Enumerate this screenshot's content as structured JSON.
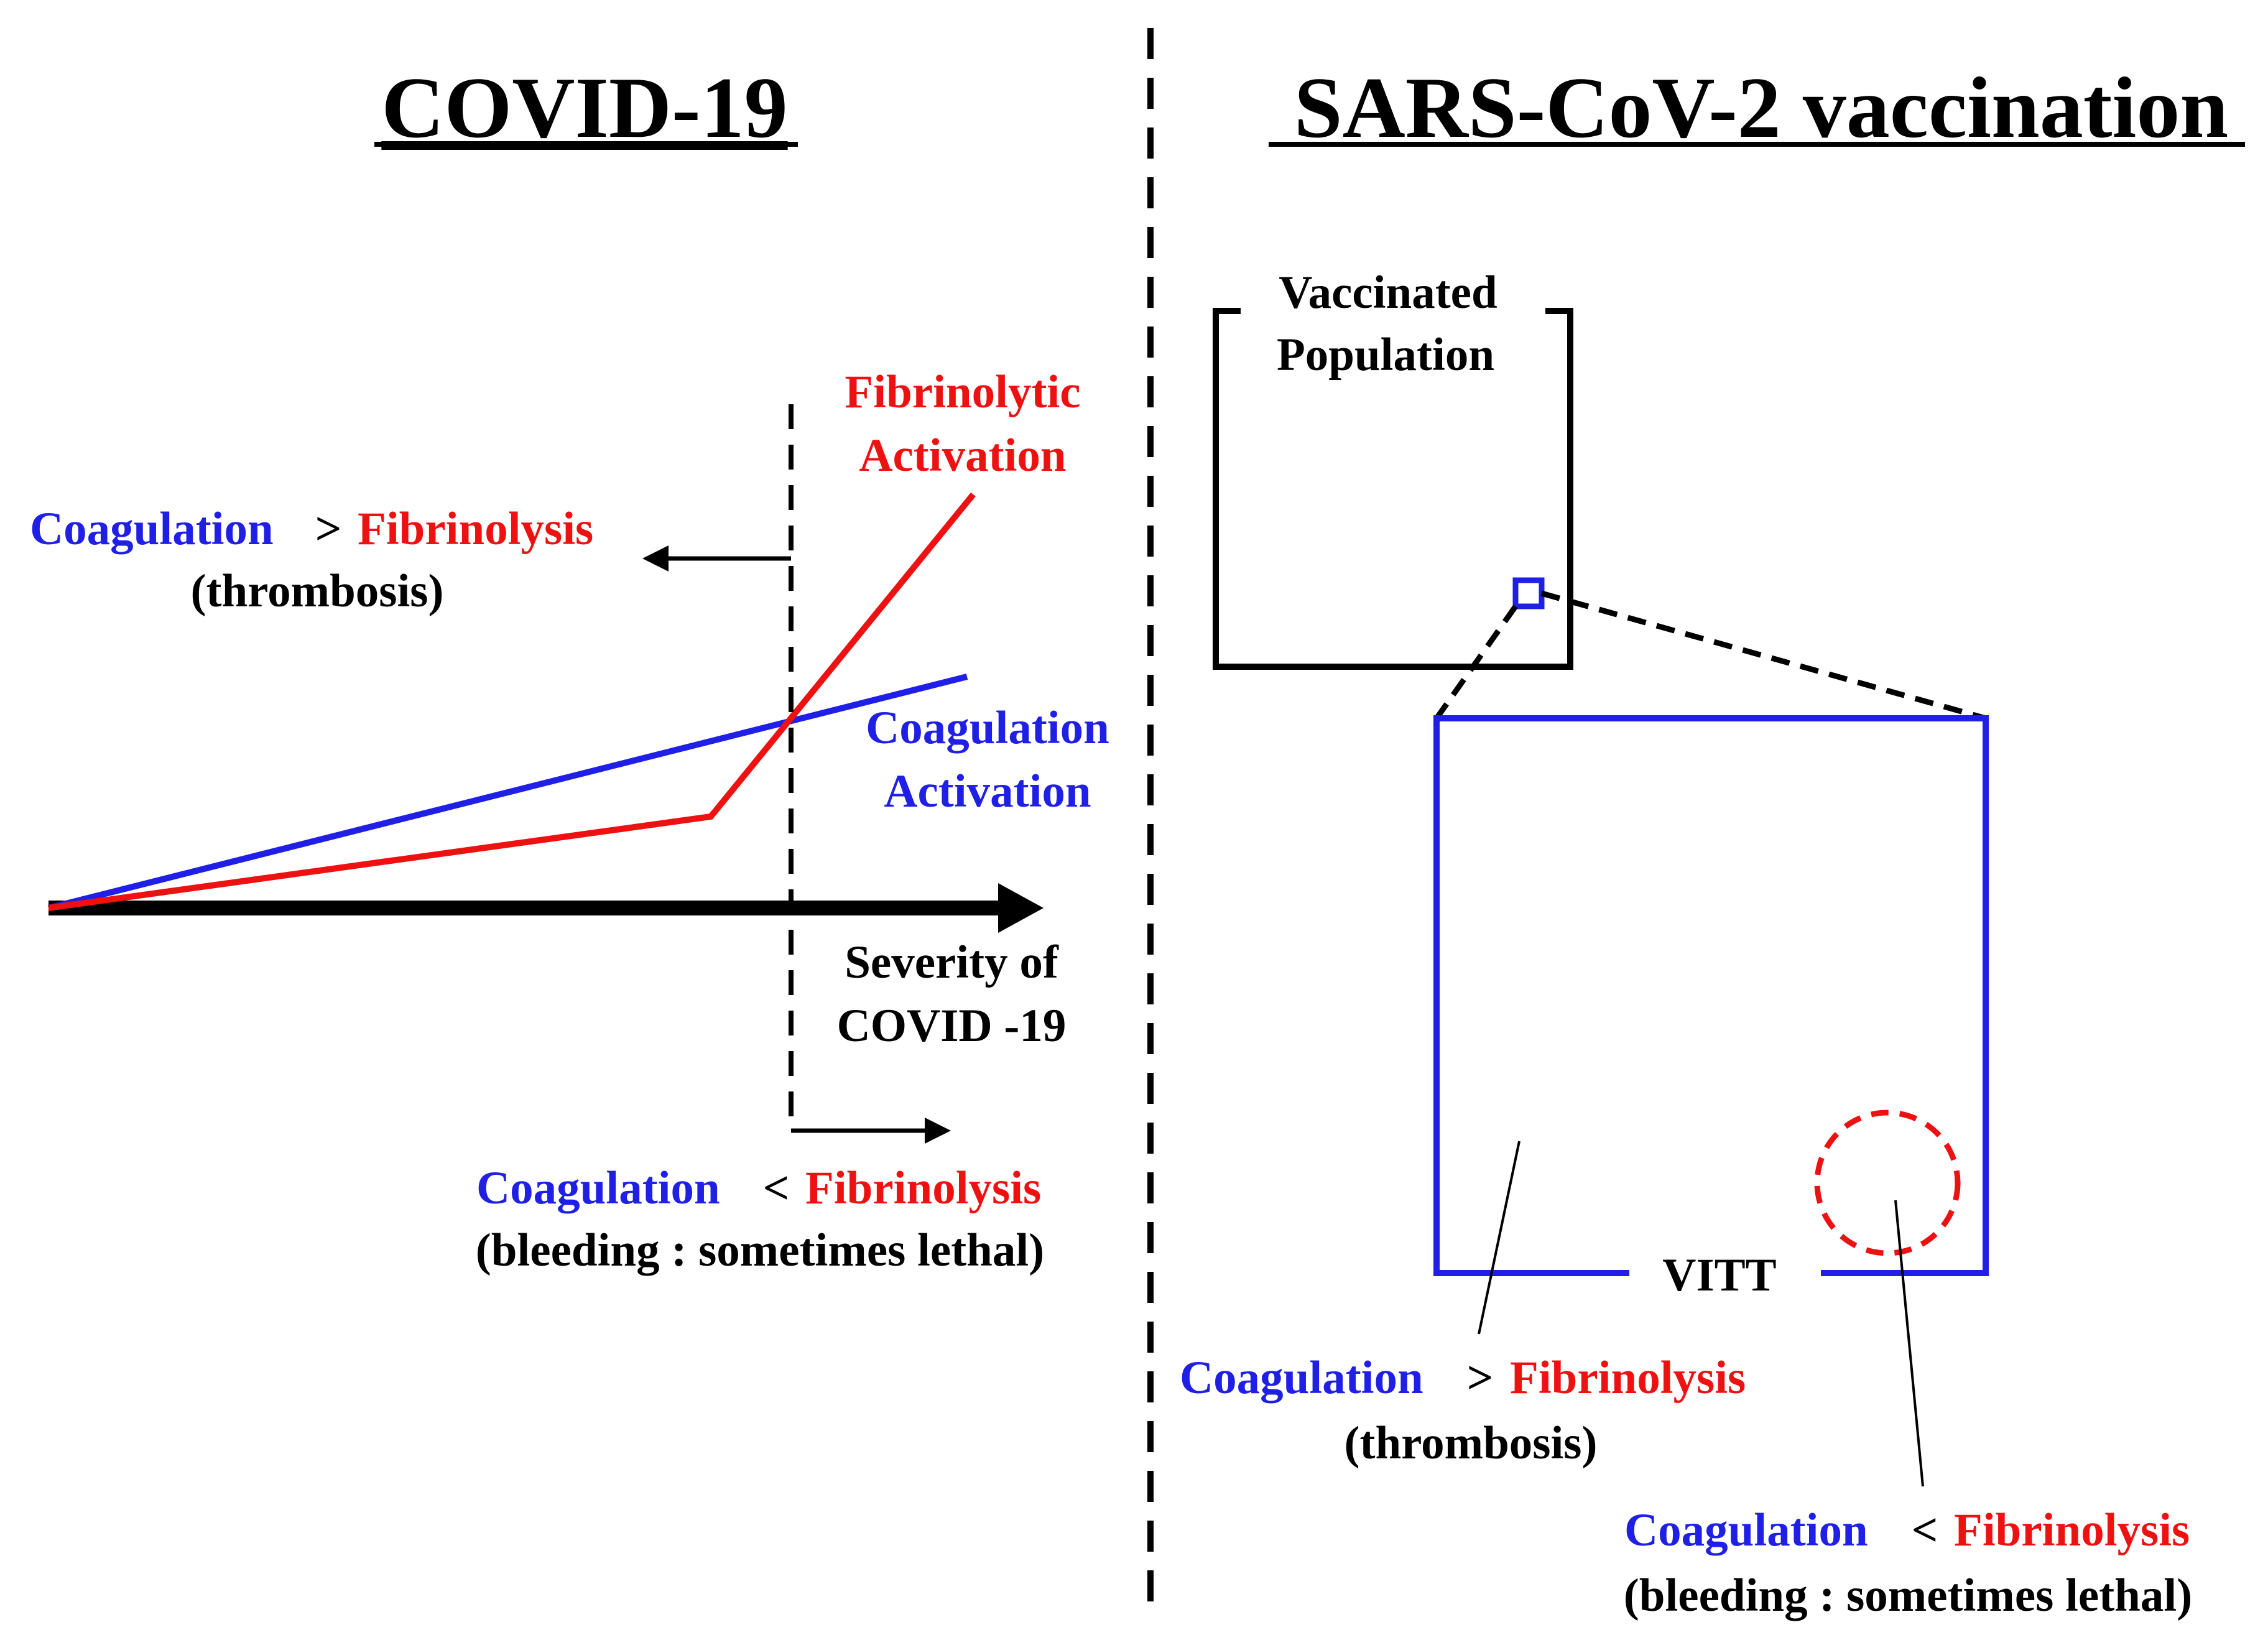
{
  "colors": {
    "coagulation": "#1f1fe6",
    "fibrinolysis": "#ee1111",
    "ink": "#000000"
  },
  "left_panel": {
    "title": "COVID-19",
    "fibrinolytic_label": [
      "Fibrinolytic",
      "Activation"
    ],
    "coagulation_label": [
      "Coagulation",
      "Activation"
    ],
    "axis_label": [
      "Severity of",
      "COVID -19"
    ],
    "upper_note": {
      "coagulation": "Coagulation",
      "operator": ">",
      "fibrinolysis": "Fibrinolysis",
      "note": "(thrombosis)"
    },
    "lower_note": {
      "coagulation": "Coagulation",
      "operator": "<",
      "fibrinolysis": "Fibrinolysis",
      "note": "(bleeding : sometimes lethal)"
    }
  },
  "right_panel": {
    "title": "SARS-CoV-2 vaccination",
    "population_label": [
      "Vaccinated",
      "Population"
    ],
    "subset_label": "VITT",
    "thrombosis_note": {
      "coagulation": "Coagulation",
      "operator": ">",
      "fibrinolysis": "Fibrinolysis",
      "note": "(thrombosis)"
    },
    "bleeding_note": {
      "coagulation": "Coagulation",
      "operator": "<",
      "fibrinolysis": "Fibrinolysis",
      "note": "(bleeding : sometimes lethal)"
    }
  }
}
